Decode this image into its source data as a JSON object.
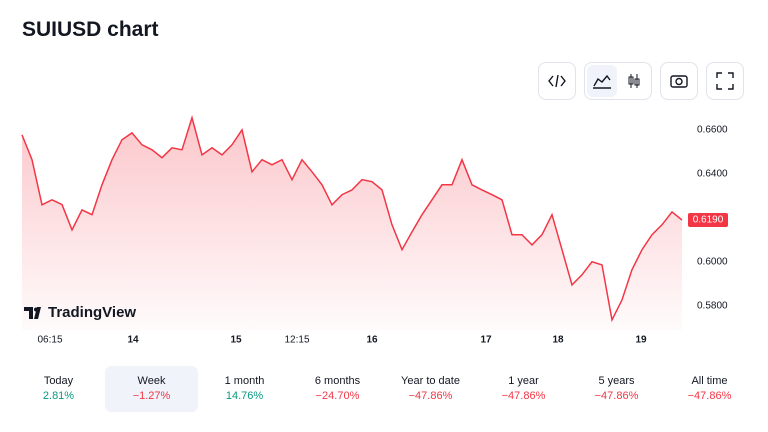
{
  "title": "SUIUSD chart",
  "chart_data": {
    "type": "line",
    "color": "#f23645",
    "series": [
      {
        "values": [
          0.6577,
          0.6464,
          0.6259,
          0.6282,
          0.626,
          0.6145,
          0.6236,
          0.6214,
          0.635,
          0.6464,
          0.6555,
          0.6586,
          0.6532,
          0.6509,
          0.6473,
          0.6518,
          0.6509,
          0.6655,
          0.6486,
          0.6518,
          0.6486,
          0.6532,
          0.66,
          0.6409,
          0.6464,
          0.6441,
          0.6464,
          0.6373,
          0.6464,
          0.6409,
          0.635,
          0.6259,
          0.6305,
          0.6327,
          0.6373,
          0.6364,
          0.6327,
          0.6168,
          0.6055,
          0.6136,
          0.6214,
          0.6282,
          0.635,
          0.635,
          0.6464,
          0.635,
          0.6327,
          0.6305,
          0.6282,
          0.6123,
          0.6123,
          0.6077,
          0.6123,
          0.6214,
          0.6055,
          0.5895,
          0.5941,
          0.6,
          0.5986,
          0.5736,
          0.5827,
          0.5964,
          0.6055,
          0.6123,
          0.6168,
          0.6227,
          0.619
        ]
      }
    ],
    "ylim": [
      0.569,
      0.669
    ],
    "yticks": [
      {
        "value": 0.66,
        "label": "0.6600"
      },
      {
        "value": 0.64,
        "label": "0.6400"
      },
      {
        "value": 0.6,
        "label": "0.6000"
      },
      {
        "value": 0.58,
        "label": "0.5800"
      }
    ],
    "xlim": [
      0,
      66.4
    ],
    "xticks": [
      {
        "value": 2.8,
        "label": "06:15"
      },
      {
        "value": 11.1,
        "label": "14"
      },
      {
        "value": 21.4,
        "label": "15"
      },
      {
        "value": 27.5,
        "label": "12:15"
      },
      {
        "value": 35,
        "label": "16"
      },
      {
        "value": 46.4,
        "label": "17"
      },
      {
        "value": 53.6,
        "label": "18"
      },
      {
        "value": 61.9,
        "label": "19"
      }
    ],
    "price_tag": {
      "value": 0.619,
      "label": "0.6190"
    },
    "watermark": "TradingView"
  },
  "periods": [
    {
      "name": "Today",
      "change": "2.81%",
      "color": "#089981"
    },
    {
      "name": "Week",
      "change": "−1.27%",
      "color": "#f23645",
      "selected": true
    },
    {
      "name": "1 month",
      "change": "14.76%",
      "color": "#089981"
    },
    {
      "name": "6 months",
      "change": "−24.70%",
      "color": "#f23645"
    },
    {
      "name": "Year to date",
      "change": "−47.86%",
      "color": "#f23645"
    },
    {
      "name": "1 year",
      "change": "−47.86%",
      "color": "#f23645"
    },
    {
      "name": "5 years",
      "change": "−47.86%",
      "color": "#f23645"
    },
    {
      "name": "All time",
      "change": "−47.86%",
      "color": "#f23645"
    }
  ]
}
